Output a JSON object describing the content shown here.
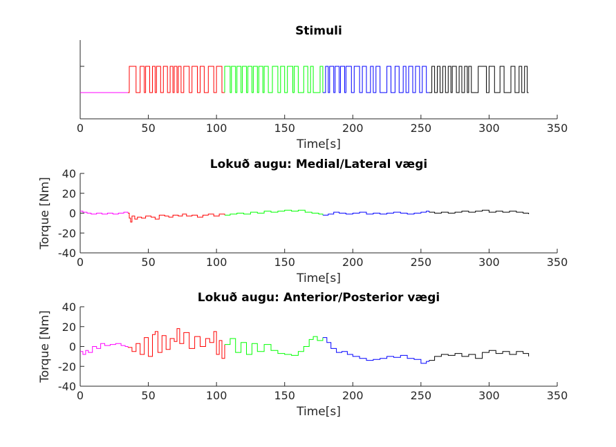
{
  "chart_data": [
    {
      "type": "line",
      "title": "Stimuli",
      "xlabel": "Time[s]",
      "ylabel": "",
      "xlim": [
        0,
        350
      ],
      "ylim": [
        0,
        3
      ],
      "xticks": [
        0,
        50,
        100,
        150,
        200,
        250,
        300,
        350
      ],
      "xtick_labels": [
        "0",
        "50",
        "100",
        "150",
        "200",
        "250",
        "300",
        "350"
      ],
      "yticks": [
        1,
        2
      ],
      "ytick_labels": [],
      "grid": false,
      "square_wave": {
        "low": 1,
        "high": 2
      },
      "series": [
        {
          "color": "#ff00ff",
          "segments": [
            [
              0,
              35
            ]
          ],
          "ones": []
        },
        {
          "color": "#ff0000",
          "segments": [
            [
              35,
              106
            ]
          ],
          "ones": [
            [
              36,
              41
            ],
            [
              44,
              47
            ],
            [
              48,
              51
            ],
            [
              53,
              55
            ],
            [
              56,
              59
            ],
            [
              61,
              64
            ],
            [
              66,
              68
            ],
            [
              69,
              71
            ],
            [
              72,
              74
            ],
            [
              76,
              80
            ],
            [
              82,
              86
            ],
            [
              88,
              91
            ],
            [
              94,
              98
            ],
            [
              100,
              104
            ]
          ]
        },
        {
          "color": "#00ff00",
          "segments": [
            [
              106,
              178
            ]
          ],
          "ones": [
            [
              106,
              110
            ],
            [
              111,
              114
            ],
            [
              115,
              118
            ],
            [
              119,
              122
            ],
            [
              123,
              126
            ],
            [
              127,
              130
            ],
            [
              131,
              134
            ],
            [
              135,
              138
            ],
            [
              141,
              145
            ],
            [
              147,
              150
            ],
            [
              152,
              156
            ],
            [
              157,
              160
            ],
            [
              164,
              167
            ],
            [
              169,
              171
            ],
            [
              176,
              178
            ]
          ]
        },
        {
          "color": "#0000ff",
          "segments": [
            [
              178,
              256
            ]
          ],
          "ones": [
            [
              180,
              182
            ],
            [
              183,
              186
            ],
            [
              187,
              190
            ],
            [
              191,
              194
            ],
            [
              195,
              199
            ],
            [
              201,
              205
            ],
            [
              207,
              210
            ],
            [
              213,
              215
            ],
            [
              217,
              220
            ],
            [
              225,
              228
            ],
            [
              231,
              234
            ],
            [
              237,
              239
            ],
            [
              241,
              244
            ],
            [
              246,
              249
            ],
            [
              251,
              254
            ]
          ]
        },
        {
          "color": "#000000",
          "segments": [
            [
              256,
              329
            ]
          ],
          "ones": [
            [
              258,
              260
            ],
            [
              262,
              264
            ],
            [
              266,
              268
            ],
            [
              270,
              272
            ],
            [
              273,
              276
            ],
            [
              278,
              280
            ],
            [
              282,
              284
            ],
            [
              285,
              287
            ],
            [
              292,
              298
            ],
            [
              300,
              304
            ],
            [
              308,
              311
            ],
            [
              316,
              319
            ],
            [
              322,
              324
            ],
            [
              326,
              328
            ]
          ]
        }
      ]
    },
    {
      "type": "line",
      "title": "Lokuð augu: Medial/Lateral vægi",
      "xlabel": "Time[s]",
      "ylabel": "Torque [Nm]",
      "xlim": [
        0,
        350
      ],
      "ylim": [
        -40,
        40
      ],
      "xticks": [
        0,
        50,
        100,
        150,
        200,
        250,
        300,
        350
      ],
      "xtick_labels": [
        "0",
        "50",
        "100",
        "150",
        "200",
        "250",
        "300",
        "350"
      ],
      "yticks": [
        -40,
        -20,
        0,
        20,
        40
      ],
      "ytick_labels": [
        "-40",
        "-20",
        "0",
        "20",
        "40"
      ],
      "grid": false,
      "series": [
        {
          "color": "#ff00ff",
          "x": [
            0,
            2,
            5,
            8,
            12,
            16,
            20,
            24,
            28,
            32,
            35
          ],
          "y": [
            2,
            1,
            0,
            -1,
            0,
            -1,
            0,
            -1,
            0,
            1,
            0
          ]
        },
        {
          "color": "#ff0000",
          "x": [
            35,
            36,
            37,
            38,
            40,
            42,
            45,
            48,
            52,
            55,
            58,
            62,
            65,
            68,
            72,
            75,
            78,
            82,
            86,
            90,
            94,
            98,
            102,
            106
          ],
          "y": [
            0,
            -5,
            -9,
            -3,
            -6,
            -4,
            -5,
            -3,
            -4,
            -6,
            -2,
            -3,
            -4,
            -2,
            -3,
            -1,
            -3,
            -2,
            -4,
            -2,
            -1,
            -3,
            -1,
            -2
          ]
        },
        {
          "color": "#00ff00",
          "x": [
            106,
            110,
            115,
            120,
            125,
            130,
            135,
            140,
            145,
            150,
            155,
            160,
            165,
            170,
            175,
            178
          ],
          "y": [
            -2,
            -1,
            0,
            -1,
            1,
            0,
            2,
            1,
            2,
            3,
            2,
            3,
            1,
            0,
            -1,
            -2
          ]
        },
        {
          "color": "#0000ff",
          "x": [
            178,
            182,
            186,
            190,
            195,
            200,
            205,
            210,
            215,
            220,
            225,
            230,
            235,
            240,
            245,
            250,
            254,
            256
          ],
          "y": [
            -2,
            -1,
            1,
            0,
            -1,
            0,
            1,
            -1,
            0,
            -1,
            0,
            1,
            0,
            -1,
            0,
            1,
            2,
            1
          ]
        },
        {
          "color": "#000000",
          "x": [
            256,
            260,
            265,
            270,
            275,
            280,
            285,
            290,
            295,
            300,
            305,
            310,
            315,
            320,
            325,
            329
          ],
          "y": [
            1,
            0,
            1,
            0,
            1,
            2,
            1,
            2,
            3,
            1,
            2,
            1,
            2,
            1,
            0,
            -1
          ]
        }
      ]
    },
    {
      "type": "line",
      "title": "Lokuð augu: Anterior/Posterior vægi",
      "xlabel": "Time[s]",
      "ylabel": "Torque [Nm]",
      "xlim": [
        0,
        350
      ],
      "ylim": [
        -40,
        40
      ],
      "xticks": [
        0,
        50,
        100,
        150,
        200,
        250,
        300,
        350
      ],
      "xtick_labels": [
        "0",
        "50",
        "100",
        "150",
        "200",
        "250",
        "300",
        "350"
      ],
      "yticks": [
        -40,
        -20,
        0,
        20,
        40
      ],
      "ytick_labels": [
        "-40",
        "-20",
        "0",
        "20",
        "40"
      ],
      "grid": false,
      "series": [
        {
          "color": "#ff00ff",
          "x": [
            0,
            2,
            4,
            6,
            9,
            12,
            15,
            18,
            22,
            26,
            30,
            33,
            35
          ],
          "y": [
            -5,
            -8,
            -4,
            -6,
            0,
            -2,
            3,
            1,
            2,
            3,
            1,
            0,
            -1
          ]
        },
        {
          "color": "#ff0000",
          "x": [
            35,
            38,
            41,
            44,
            47,
            50,
            53,
            55,
            57,
            60,
            63,
            66,
            69,
            71,
            73,
            76,
            80,
            84,
            88,
            92,
            95,
            98,
            100,
            102,
            104,
            106
          ],
          "y": [
            -1,
            -5,
            3,
            -8,
            9,
            -10,
            12,
            15,
            -6,
            11,
            -3,
            8,
            5,
            18,
            3,
            14,
            -2,
            10,
            0,
            8,
            4,
            15,
            -8,
            6,
            -12,
            2
          ]
        },
        {
          "color": "#00ff00",
          "x": [
            106,
            110,
            114,
            118,
            122,
            126,
            130,
            135,
            140,
            145,
            150,
            155,
            160,
            164,
            168,
            171,
            174,
            178
          ],
          "y": [
            2,
            8,
            -6,
            4,
            -8,
            3,
            -5,
            2,
            -4,
            -7,
            -8,
            -9,
            -5,
            0,
            7,
            10,
            6,
            9
          ]
        },
        {
          "color": "#0000ff",
          "x": [
            178,
            181,
            184,
            188,
            192,
            196,
            200,
            205,
            210,
            215,
            220,
            225,
            230,
            235,
            240,
            245,
            250,
            254,
            256
          ],
          "y": [
            9,
            4,
            -2,
            -6,
            -5,
            -8,
            -10,
            -12,
            -14,
            -13,
            -12,
            -10,
            -11,
            -9,
            -12,
            -13,
            -17,
            -15,
            -14
          ]
        },
        {
          "color": "#000000",
          "x": [
            256,
            260,
            265,
            270,
            275,
            280,
            285,
            290,
            295,
            300,
            305,
            310,
            315,
            320,
            325,
            329
          ],
          "y": [
            -14,
            -10,
            -8,
            -9,
            -7,
            -10,
            -8,
            -12,
            -6,
            -4,
            -7,
            -5,
            -8,
            -5,
            -7,
            -10
          ]
        }
      ]
    }
  ]
}
